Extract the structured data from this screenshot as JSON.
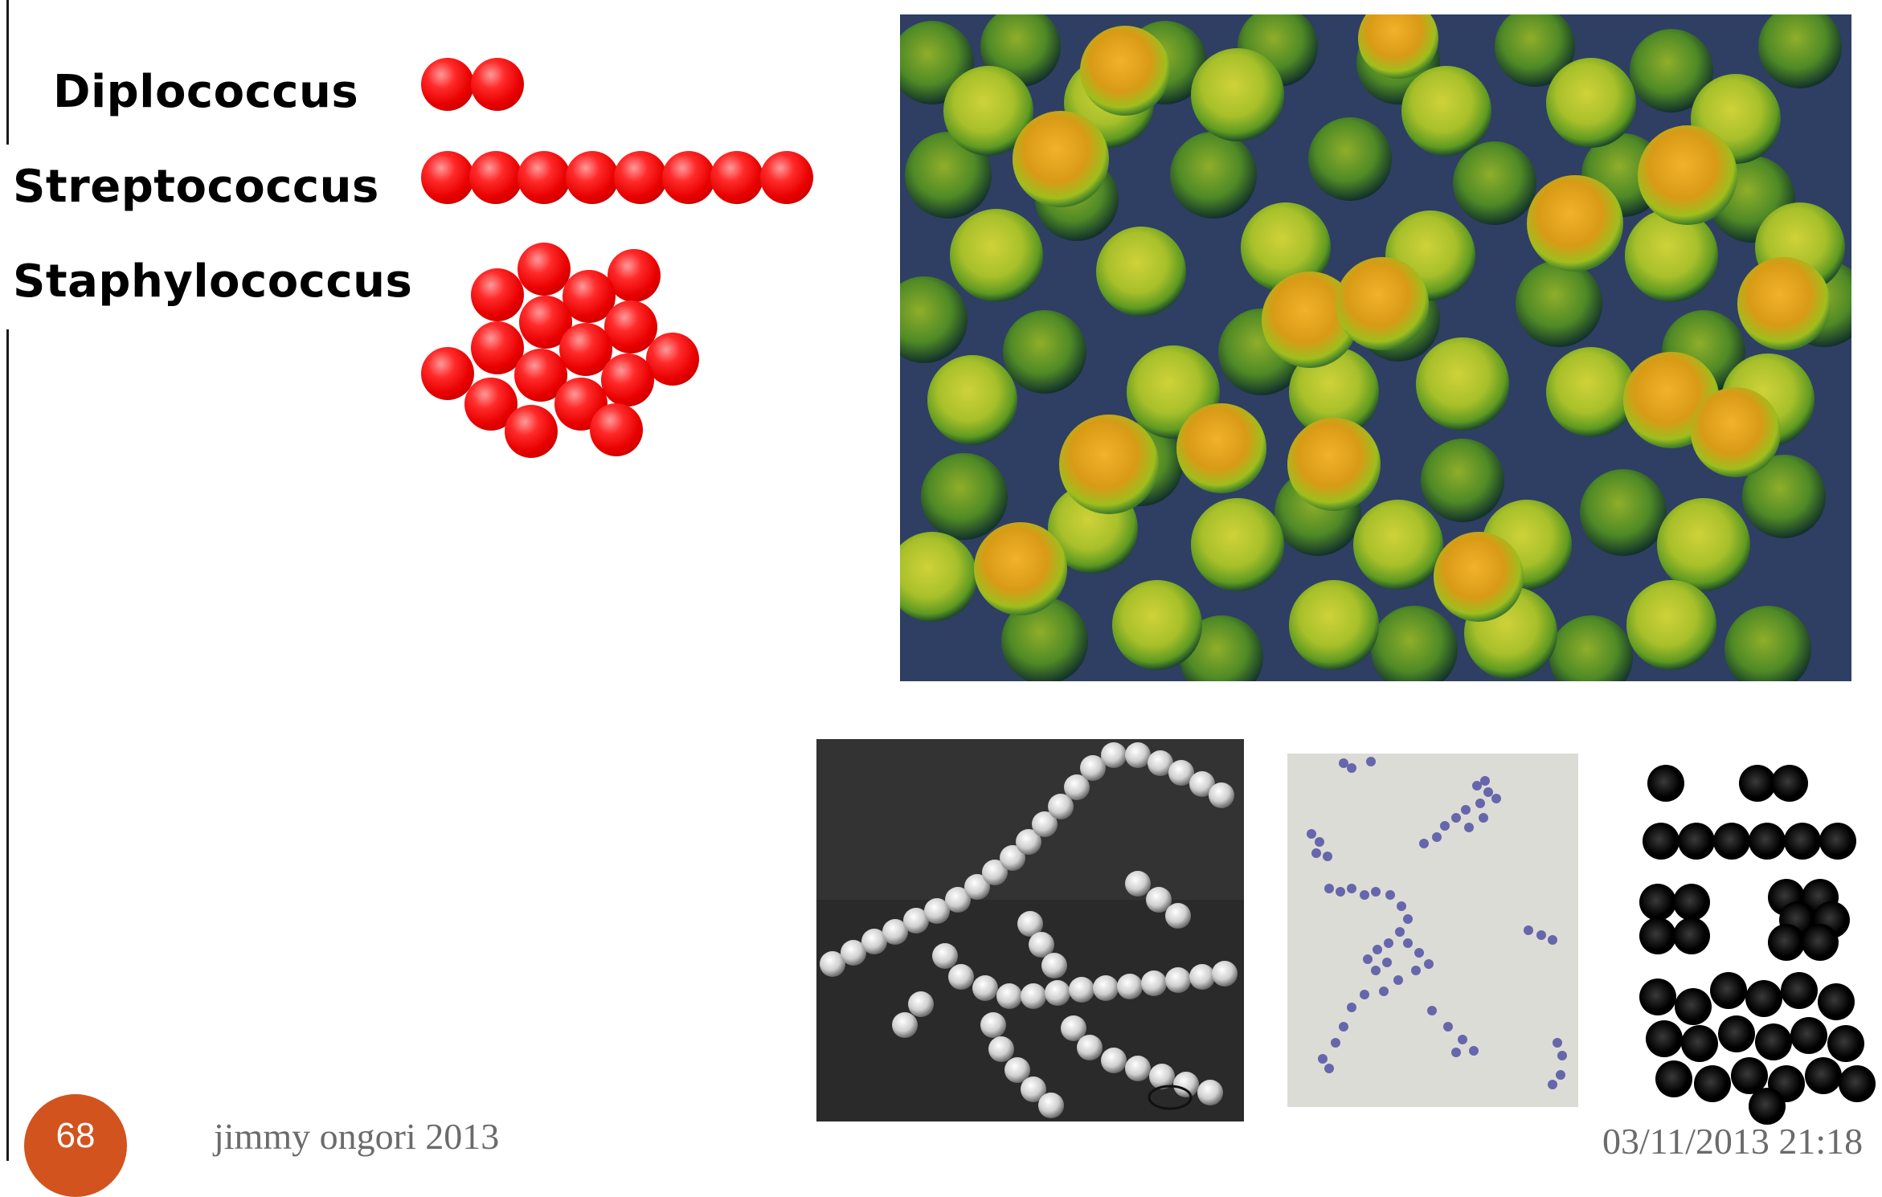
{
  "slide": {
    "labels": {
      "diplococcus": "Diplococcus",
      "streptococcus": "Streptococcus",
      "staphylococcus": "Staphylococcus"
    },
    "footer": {
      "author": "jimmy ongori 2013",
      "datetime": "03/11/2013 21:18",
      "page_number": "68"
    },
    "colors": {
      "ball_red": "#e80000",
      "page_badge": "#d2531e",
      "footer_text": "#6b6b6b"
    },
    "images": {
      "main_micrograph": "cocci-sem-micrograph",
      "chain_micrograph": "streptococcus-sem-micrograph",
      "cluster_micrograph": "staphylococcus-light-micrograph",
      "arrangement_diagram": "cocci-arrangements-diagram"
    }
  }
}
